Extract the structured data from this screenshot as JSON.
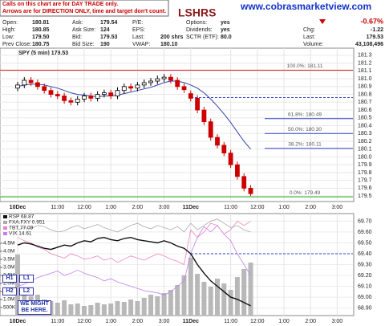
{
  "header": {
    "notes": [
      "Calls on this chart are for DAY TRADE only.",
      "Arrows are for DIRECTION ONLY, time and target don't count."
    ],
    "logo": "LSHRS",
    "site": "www.cobrasmarketview.com",
    "quote": {
      "columns": [
        [
          [
            "Open:",
            "180.81"
          ],
          [
            "High:",
            "180.85"
          ],
          [
            "Low:",
            "179.50"
          ],
          [
            "Prev Close:",
            "180.75"
          ]
        ],
        [
          [
            "Ask:",
            "179.54"
          ],
          [
            "Ask Size:",
            "124"
          ],
          [
            "Bid:",
            "179.53"
          ],
          [
            "Bid Size:",
            "190"
          ]
        ],
        [
          [
            "P/E:"
          ],
          [
            "EPS:"
          ],
          [
            "Last:",
            "200 shrs"
          ],
          [
            "VWAP:",
            "180.10"
          ]
        ],
        [
          [
            "Options:",
            "yes"
          ],
          [
            "Dividends:",
            "yes"
          ],
          [
            "SCTR (ETF):",
            "80.0"
          ]
        ]
      ],
      "change_pct": "-0.67%",
      "summary": [
        [
          "Chg:",
          "-1.22"
        ],
        [
          "Last:",
          "179.53"
        ],
        [
          "Volume:",
          "43,108,496"
        ]
      ]
    }
  },
  "chart_data": [
    {
      "type": "candlestick",
      "title": "SPY (5 min) 179.53",
      "categories": [
        "10Dec",
        null,
        null,
        null,
        null,
        null,
        "11:00",
        null,
        null,
        null,
        "12:00",
        null,
        null,
        null,
        "1:00",
        null,
        null,
        null,
        "2:00",
        null,
        null,
        null,
        "3:00",
        null,
        null,
        null,
        "11Dec",
        null,
        null,
        null,
        null,
        null,
        "11:00",
        null,
        null,
        null,
        "12:00",
        null,
        null,
        null,
        "1:00",
        null,
        null,
        null,
        "2:00",
        null,
        null,
        null,
        "3:00",
        null,
        null,
        null
      ],
      "open": [
        180.88,
        180.92,
        180.98,
        180.95,
        180.9,
        180.85,
        180.8,
        180.78,
        180.72,
        180.7,
        180.74,
        180.78,
        180.75,
        180.8,
        180.82,
        180.78,
        180.85,
        180.9,
        180.88,
        180.92,
        180.95,
        180.97,
        181.0,
        181.02,
        180.98,
        180.9,
        180.81,
        180.75,
        180.6,
        180.45,
        180.25,
        180.15,
        180.05,
        179.9,
        179.75,
        179.6,
        null,
        null,
        null,
        null,
        null,
        null,
        null,
        null,
        null,
        null,
        null,
        null,
        null,
        null,
        null,
        null
      ],
      "high": [
        180.96,
        181.02,
        181.02,
        180.99,
        180.94,
        180.89,
        180.84,
        180.82,
        180.76,
        180.78,
        180.82,
        180.82,
        180.84,
        180.86,
        180.86,
        180.89,
        180.94,
        180.94,
        180.96,
        180.99,
        181.01,
        181.04,
        181.06,
        181.06,
        181.02,
        180.94,
        180.85,
        180.79,
        180.64,
        180.49,
        180.29,
        180.19,
        180.09,
        179.94,
        179.79,
        179.64,
        null,
        null,
        null,
        null,
        null,
        null,
        null,
        null,
        null,
        null,
        null,
        null,
        null,
        null,
        null,
        null
      ],
      "low": [
        180.84,
        180.88,
        180.91,
        180.86,
        180.81,
        180.76,
        180.74,
        180.68,
        180.66,
        180.66,
        180.7,
        180.71,
        180.71,
        180.76,
        180.74,
        180.74,
        180.81,
        180.84,
        180.84,
        180.88,
        180.91,
        180.93,
        180.96,
        180.94,
        180.86,
        180.82,
        180.71,
        180.56,
        180.41,
        180.21,
        180.11,
        180.01,
        179.86,
        179.71,
        179.56,
        179.5,
        null,
        null,
        null,
        null,
        null,
        null,
        null,
        null,
        null,
        null,
        null,
        null,
        null,
        null,
        null,
        null
      ],
      "close": [
        180.92,
        180.98,
        180.95,
        180.9,
        180.85,
        180.8,
        180.78,
        180.72,
        180.7,
        180.74,
        180.78,
        180.75,
        180.8,
        180.82,
        180.78,
        180.85,
        180.9,
        180.88,
        180.92,
        180.95,
        180.97,
        181.0,
        181.02,
        180.98,
        180.9,
        180.86,
        180.75,
        180.6,
        180.45,
        180.25,
        180.15,
        180.05,
        179.9,
        179.75,
        179.6,
        179.53,
        null,
        null,
        null,
        null,
        null,
        null,
        null,
        null,
        null,
        null,
        null,
        null,
        null,
        null,
        null,
        null
      ],
      "up_color": "#000000",
      "down_color": "#cc0000",
      "ma": {
        "color": "#3344aa",
        "values": [
          180.9,
          180.92,
          180.93,
          180.93,
          180.92,
          180.9,
          180.88,
          180.85,
          180.82,
          180.8,
          180.79,
          180.78,
          180.77,
          180.78,
          180.78,
          180.79,
          180.81,
          180.83,
          180.85,
          180.87,
          180.89,
          180.92,
          180.95,
          180.97,
          180.97,
          180.95,
          180.92,
          180.88,
          180.82,
          180.74,
          180.65,
          180.55,
          180.44,
          180.32,
          180.2,
          180.1,
          null,
          null,
          null,
          null,
          null,
          null,
          null,
          null,
          null,
          null,
          null,
          null,
          null,
          null,
          null,
          null
        ]
      },
      "ylim": [
        179.45,
        181.35
      ],
      "yticks": [
        179.5,
        179.6,
        179.7,
        179.8,
        179.9,
        {
          "value": 180,
          "label": "180.0"
        },
        180.1,
        180.2,
        180.3,
        180.4,
        180.5,
        180.6,
        180.7,
        180.8,
        180.9,
        {
          "value": 181,
          "label": "181.0"
        },
        181.1,
        181.2,
        181.3
      ],
      "fib_levels": [
        {
          "value": 181.11,
          "label": "100.0%: 181.11"
        },
        {
          "value": 180.49,
          "label": "61.8%: 180.49"
        },
        {
          "value": 180.3,
          "label": "50.0%: 180.30"
        },
        {
          "value": 180.11,
          "label": "38.2%: 180.11"
        },
        {
          "value": 179.49,
          "label": "0.0%: 179.49"
        }
      ],
      "resistance_line": 180.76,
      "grid": true
    },
    {
      "type": "line",
      "categories": [
        "10Dec",
        null,
        null,
        null,
        null,
        null,
        "11:00",
        null,
        null,
        null,
        "12:00",
        null,
        null,
        null,
        "1:00",
        null,
        null,
        null,
        "2:00",
        null,
        null,
        null,
        "3:00",
        null,
        null,
        null,
        "11Dec",
        null,
        null,
        null,
        null,
        null,
        "11:00",
        null,
        null,
        null,
        "12:00",
        null,
        null,
        null,
        "1:00",
        null,
        null,
        null,
        "2:00",
        null,
        null,
        null,
        "3:00",
        null,
        null,
        null
      ],
      "series": [
        {
          "name": "RSP 68.87",
          "color": "#111111",
          "axis": "y2",
          "values": [
            69.48,
            69.5,
            69.49,
            69.47,
            69.45,
            69.44,
            69.46,
            69.48,
            69.47,
            69.5,
            69.52,
            69.51,
            69.54,
            69.55,
            69.53,
            69.52,
            69.54,
            69.55,
            69.53,
            69.52,
            69.51,
            69.5,
            69.52,
            69.5,
            69.47,
            69.45,
            69.4,
            69.3,
            69.22,
            69.15,
            69.1,
            69.05,
            69.0,
            68.98,
            68.95,
            68.92,
            null,
            null,
            null,
            null,
            null,
            null,
            null,
            null,
            null,
            null,
            null,
            null,
            null,
            null,
            null,
            null
          ]
        },
        {
          "name": "FXA:FXY 0.951",
          "color": "#aaaaaa",
          "axis": "y2",
          "values": [
            69.62,
            69.64,
            69.63,
            69.66,
            69.65,
            69.62,
            69.6,
            69.61,
            69.64,
            69.66,
            69.63,
            69.65,
            69.67,
            69.64,
            69.62,
            69.6,
            69.63,
            69.66,
            69.68,
            69.65,
            69.63,
            69.66,
            69.64,
            69.62,
            69.65,
            69.6,
            69.68,
            69.62,
            69.66,
            69.7,
            69.72,
            69.68,
            69.64,
            69.66,
            69.62,
            69.6,
            null,
            null,
            null,
            null,
            null,
            null,
            null,
            null,
            null,
            null,
            null,
            null,
            null,
            null,
            null,
            null
          ]
        },
        {
          "name": "TBT 77.09",
          "color": "#f080c0",
          "axis": "y2",
          "values": [
            69.55,
            69.52,
            69.5,
            69.46,
            69.44,
            69.4,
            69.38,
            69.36,
            69.4,
            69.38,
            69.35,
            69.36,
            69.38,
            69.34,
            69.36,
            69.32,
            69.35,
            69.38,
            69.36,
            69.34,
            69.37,
            69.4,
            69.38,
            69.35,
            69.33,
            69.3,
            69.62,
            69.55,
            69.6,
            69.68,
            69.66,
            69.58,
            69.62,
            69.7,
            69.66,
            69.7,
            null,
            null,
            null,
            null,
            null,
            null,
            null,
            null,
            null,
            null,
            null,
            null,
            null,
            null,
            null,
            null
          ]
        },
        {
          "name": "VIX 14.61",
          "color": "#c080f0",
          "axis": "y2",
          "values": [
            69.1,
            69.12,
            69.15,
            69.18,
            69.2,
            69.22,
            69.24,
            69.2,
            69.22,
            69.25,
            69.22,
            69.2,
            69.18,
            69.15,
            69.17,
            69.14,
            69.12,
            69.1,
            69.08,
            69.06,
            69.05,
            69.04,
            69.02,
            69.05,
            69.1,
            69.15,
            69.4,
            69.55,
            69.65,
            69.6,
            69.66,
            69.58,
            69.52,
            69.4,
            69.3,
            69.2,
            null,
            null,
            null,
            null,
            null,
            null,
            null,
            null,
            null,
            null,
            null,
            null,
            null,
            null,
            null,
            null
          ]
        }
      ],
      "volume": {
        "color": "#b8b8b8",
        "values": [
          3800000,
          1500000,
          1200000,
          1300000,
          1000000,
          900000,
          800000,
          950000,
          700000,
          750000,
          600000,
          650000,
          800000,
          700000,
          750000,
          900000,
          850000,
          1000000,
          900000,
          1100000,
          1300000,
          1200000,
          1400000,
          1600000,
          1900000,
          2500000,
          3600000,
          2600000,
          2100000,
          1800000,
          2300000,
          2000000,
          1600000,
          2400000,
          2900000,
          3300000,
          null,
          null,
          null,
          null,
          null,
          null,
          null,
          null,
          null,
          null,
          null,
          null,
          null,
          null,
          null,
          null
        ]
      },
      "ylim": [
        0,
        5000000
      ],
      "yticks": [
        {
          "value": 500000,
          "label": "500K"
        },
        {
          "value": 1000000,
          "label": "1.0M"
        },
        {
          "value": 1500000,
          "label": "1.5M"
        },
        {
          "value": 2000000,
          "label": "2.0M"
        },
        {
          "value": 2500000,
          "label": "2.5M"
        },
        {
          "value": 3000000,
          "label": "3.0M"
        },
        {
          "value": 3500000,
          "label": "3.5M"
        },
        {
          "value": 4000000,
          "label": "4.0M"
        },
        {
          "value": 4500000,
          "label": "4.5M"
        }
      ],
      "y2lim": [
        68.86,
        69.74
      ],
      "y2ticks": [
        {
          "value": 68.9,
          "label": "68.90"
        },
        {
          "value": 69,
          "label": "69.00"
        },
        {
          "value": 69.1,
          "label": "69.10"
        },
        {
          "value": 69.2,
          "label": "69.20"
        },
        {
          "value": 69.3,
          "label": "69.30"
        },
        {
          "value": 69.4,
          "label": "69.40"
        },
        {
          "value": 69.5,
          "label": "69.50"
        },
        {
          "value": 69.6,
          "label": "69.60"
        },
        {
          "value": 69.7,
          "label": "69.70"
        }
      ],
      "support_line": 69.4,
      "annotations": [
        "H1",
        "L1",
        "H2",
        "L2",
        "WE MIGHT BE HERE."
      ]
    }
  ]
}
